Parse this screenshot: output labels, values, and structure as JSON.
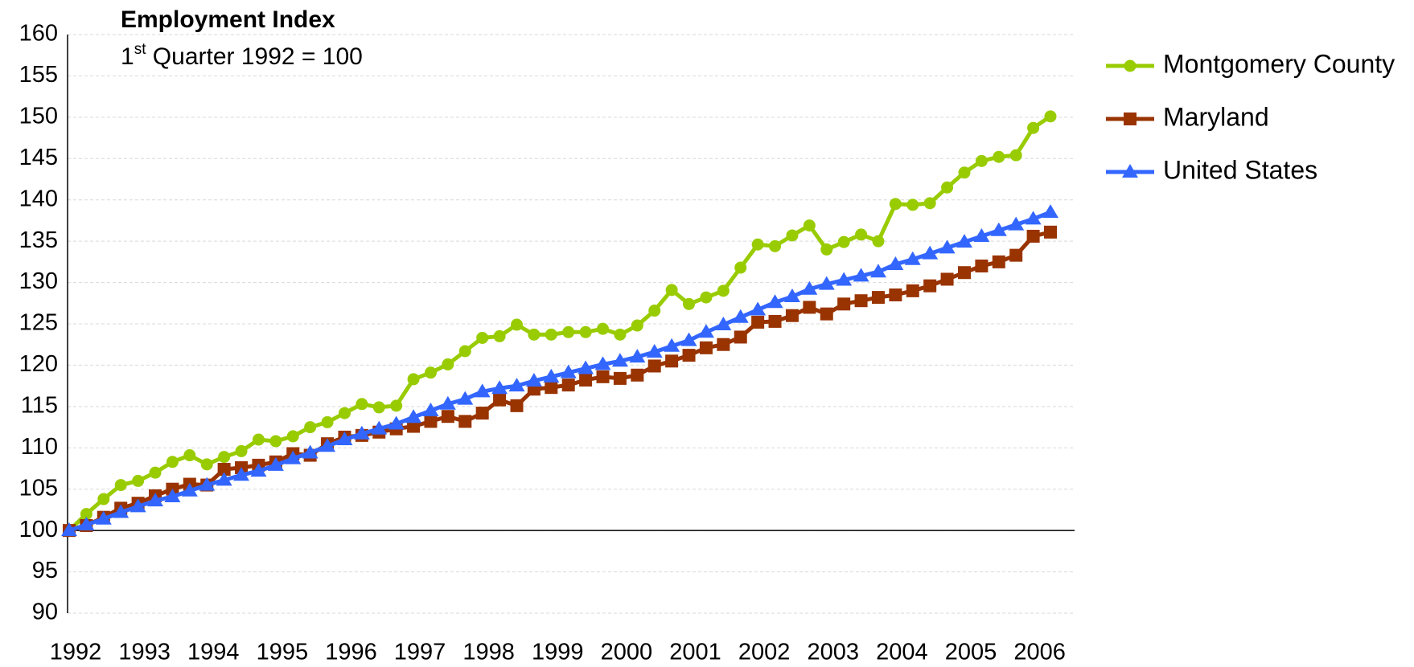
{
  "chart_data": {
    "type": "line",
    "title": "Employment Index",
    "subtitle": {
      "number": "1",
      "suffix": "st",
      "rest": " Quarter 1992 = 100"
    },
    "categories": [
      "1992",
      null,
      null,
      null,
      "1993",
      null,
      null,
      null,
      "1994",
      null,
      null,
      null,
      "1995",
      null,
      null,
      null,
      "1996",
      null,
      null,
      null,
      "1997",
      null,
      null,
      null,
      "1998",
      null,
      null,
      null,
      "1999",
      null,
      null,
      null,
      "2000",
      null,
      null,
      null,
      "2001",
      null,
      null,
      null,
      "2002",
      null,
      null,
      null,
      "2003",
      null,
      null,
      null,
      "2004",
      null,
      null,
      null,
      "2005",
      null,
      null,
      null,
      "2006",
      null
    ],
    "series": [
      {
        "name": "Montgomery County",
        "color": "#99cc00",
        "marker": "circle",
        "values": [
          100,
          102,
          103.8,
          105.5,
          106,
          107,
          108.3,
          109.1,
          108,
          108.9,
          109.6,
          111,
          110.8,
          111.4,
          112.5,
          113.1,
          114.2,
          115.3,
          114.9,
          115.1,
          118.3,
          119.1,
          120.1,
          121.7,
          123.3,
          123.5,
          124.9,
          123.7,
          123.7,
          124,
          124,
          124.4,
          123.7,
          124.8,
          126.6,
          129.1,
          127.4,
          128.2,
          129,
          131.8,
          134.6,
          134.4,
          135.7,
          136.9,
          134,
          134.9,
          135.8,
          135,
          139.5,
          139.4,
          139.6,
          141.5,
          143.3,
          144.7,
          145.2,
          145.4,
          148.7,
          150.1
        ]
      },
      {
        "name": "Maryland",
        "color": "#993300",
        "marker": "square",
        "values": [
          100,
          100.6,
          101.6,
          102.7,
          103.3,
          104.2,
          105,
          105.6,
          105.5,
          107.4,
          107.6,
          107.9,
          108.3,
          109.3,
          109.1,
          110.5,
          111.3,
          111.5,
          111.9,
          112.3,
          112.6,
          113.2,
          113.8,
          113.2,
          114.2,
          115.8,
          115.1,
          117.1,
          117.3,
          117.6,
          118.2,
          118.6,
          118.4,
          118.8,
          119.9,
          120.5,
          121.2,
          122.1,
          122.5,
          123.4,
          125.2,
          125.3,
          126,
          127,
          126.2,
          127.4,
          127.8,
          128.2,
          128.5,
          129,
          129.6,
          130.4,
          131.2,
          132,
          132.5,
          133.3,
          135.6,
          136.1
        ]
      },
      {
        "name": "United States",
        "color": "#3366ff",
        "marker": "triangle",
        "values": [
          100,
          100.7,
          101.4,
          102.2,
          102.9,
          103.6,
          104.1,
          104.8,
          105.5,
          106.1,
          106.7,
          107.2,
          107.9,
          108.7,
          109.4,
          110.2,
          111,
          111.7,
          112.3,
          112.9,
          113.7,
          114.5,
          115.3,
          115.9,
          116.8,
          117.2,
          117.5,
          118.1,
          118.6,
          119.1,
          119.6,
          120.1,
          120.5,
          121,
          121.6,
          122.3,
          123,
          124,
          124.9,
          125.8,
          126.7,
          127.6,
          128.3,
          129.2,
          129.8,
          130.3,
          130.8,
          131.3,
          132.2,
          132.8,
          133.5,
          134.2,
          134.9,
          135.6,
          136.3,
          137,
          137.7,
          138.5
        ]
      }
    ],
    "ylim": [
      90,
      160
    ],
    "yticks": [
      90,
      95,
      100,
      105,
      110,
      115,
      120,
      125,
      130,
      135,
      140,
      145,
      150,
      155,
      160
    ],
    "x_axis_crosses": 100,
    "grid": true,
    "legend": "right"
  }
}
